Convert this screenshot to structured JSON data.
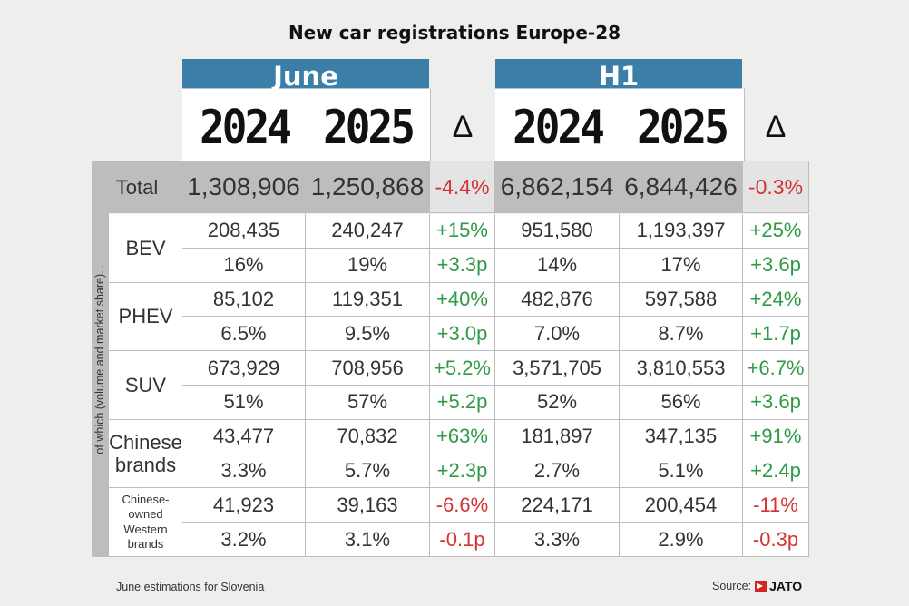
{
  "title": "New car registrations Europe-28",
  "groups": [
    {
      "label": "June",
      "years": [
        "2024",
        "2025"
      ],
      "delta": "Δ"
    },
    {
      "label": "H1",
      "years": [
        "2024",
        "2025"
      ],
      "delta": "Δ"
    }
  ],
  "side_label": "of which (volume and market share)...",
  "total": {
    "label": "Total",
    "values": [
      "1,308,906",
      "1,250,868",
      "-4.4%",
      "6,862,154",
      "6,844,426",
      "-0.3%"
    ]
  },
  "rows": [
    {
      "label": "BEV",
      "volume": [
        "208,435",
        "240,247",
        "+15%",
        "951,580",
        "1,193,397",
        "+25%"
      ],
      "share": [
        "16%",
        "19%",
        "+3.3p",
        "14%",
        "17%",
        "+3.6p"
      ]
    },
    {
      "label": "PHEV",
      "volume": [
        "85,102",
        "119,351",
        "+40%",
        "482,876",
        "597,588",
        "+24%"
      ],
      "share": [
        "6.5%",
        "9.5%",
        "+3.0p",
        "7.0%",
        "8.7%",
        "+1.7p"
      ]
    },
    {
      "label": "SUV",
      "volume": [
        "673,929",
        "708,956",
        "+5.2%",
        "3,571,705",
        "3,810,553",
        "+6.7%"
      ],
      "share": [
        "51%",
        "57%",
        "+5.2p",
        "52%",
        "56%",
        "+3.6p"
      ]
    },
    {
      "label": "Chinese brands",
      "volume": [
        "43,477",
        "70,832",
        "+63%",
        "181,897",
        "347,135",
        "+91%"
      ],
      "share": [
        "3.3%",
        "5.7%",
        "+2.3p",
        "2.7%",
        "5.1%",
        "+2.4p"
      ]
    },
    {
      "label": "Chinese-owned Western brands",
      "volume": [
        "41,923",
        "39,163",
        "-6.6%",
        "224,171",
        "200,454",
        "-11%"
      ],
      "share": [
        "3.2%",
        "3.1%",
        "-0.1p",
        "3.3%",
        "2.9%",
        "-0.3p"
      ]
    }
  ],
  "footnote": "June estimations for Slovenia",
  "source": {
    "label": "Source:",
    "brand": "JATO"
  },
  "colors": {
    "header": "#3b7ea8",
    "positive": "#2e9a45",
    "negative": "#d43333",
    "total_bg": "#bdbdbd"
  }
}
